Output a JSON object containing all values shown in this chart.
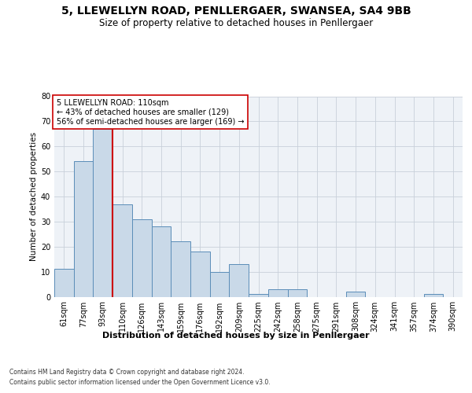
{
  "title": "5, LLEWELLYN ROAD, PENLLERGAER, SWANSEA, SA4 9BB",
  "subtitle": "Size of property relative to detached houses in Penllergaer",
  "xlabel": "Distribution of detached houses by size in Penllergaer",
  "ylabel": "Number of detached properties",
  "categories": [
    "61sqm",
    "77sqm",
    "93sqm",
    "110sqm",
    "126sqm",
    "143sqm",
    "159sqm",
    "176sqm",
    "192sqm",
    "209sqm",
    "225sqm",
    "242sqm",
    "258sqm",
    "275sqm",
    "291sqm",
    "308sqm",
    "324sqm",
    "341sqm",
    "357sqm",
    "374sqm",
    "390sqm"
  ],
  "values": [
    11,
    54,
    67,
    37,
    31,
    28,
    22,
    18,
    10,
    13,
    1,
    3,
    3,
    0,
    0,
    2,
    0,
    0,
    0,
    1,
    0
  ],
  "bar_color": "#c9d9e8",
  "bar_edge_color": "#5b8db8",
  "vline_color": "#cc0000",
  "vline_x_index": 3,
  "annotation_text": "5 LLEWELLYN ROAD: 110sqm\n← 43% of detached houses are smaller (129)\n56% of semi-detached houses are larger (169) →",
  "annotation_box_color": "#cc0000",
  "ylim": [
    0,
    80
  ],
  "yticks": [
    0,
    10,
    20,
    30,
    40,
    50,
    60,
    70,
    80
  ],
  "grid_color": "#c8d0da",
  "background_color": "#eef2f7",
  "title_fontsize": 10,
  "subtitle_fontsize": 8.5,
  "xlabel_fontsize": 8,
  "ylabel_fontsize": 7.5,
  "tick_fontsize": 7,
  "annotation_fontsize": 7,
  "footer_line1": "Contains HM Land Registry data © Crown copyright and database right 2024.",
  "footer_line2": "Contains public sector information licensed under the Open Government Licence v3.0.",
  "footer_fontsize": 5.5
}
